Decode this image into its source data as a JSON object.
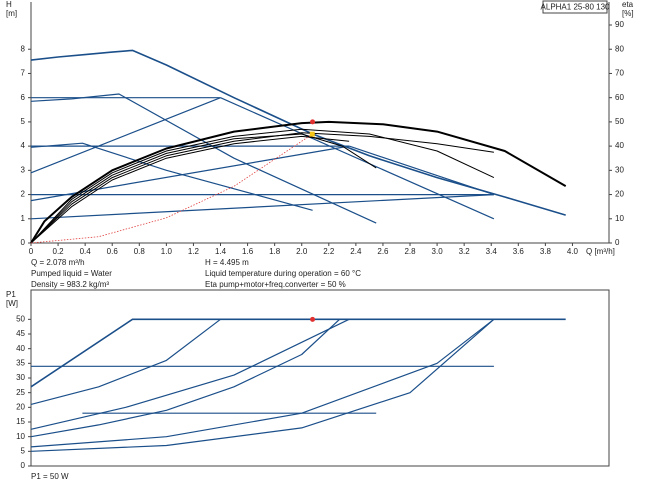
{
  "chart_data": [
    {
      "type": "line",
      "title": "ALPHA1 25-80 130",
      "ylabel": "H",
      "yunit": "[m]",
      "y2label": "eta",
      "y2unit": "[%]",
      "xlabel": "Q [m³/h]",
      "xlim": [
        0,
        4.27
      ],
      "ylim": [
        0,
        9.95
      ],
      "y2lim": [
        0,
        99.5
      ],
      "xticks": [
        0,
        0.2,
        0.4,
        0.6,
        0.8,
        {
          "value": 1,
          "label": "1.0"
        },
        1.2,
        1.4,
        1.6,
        1.8,
        {
          "value": 2,
          "label": "2.0"
        },
        2.2,
        2.4,
        2.6,
        2.8,
        {
          "value": 3,
          "label": "3.0"
        },
        3.2,
        3.4,
        3.6,
        3.8,
        {
          "value": 4,
          "label": "4.0"
        }
      ],
      "yticks": [
        0,
        1,
        2,
        3,
        4,
        5,
        6,
        7,
        8
      ],
      "y2ticks": [
        0,
        10,
        20,
        30,
        40,
        50,
        60,
        70,
        80,
        90
      ],
      "annotations": [
        "Q = 2.078 m³/h",
        "H = 4.495 m",
        "Pumped liquid = Water",
        "Liquid temperature during operation = 60 °C",
        "Density = 983.2 kg/m³",
        "Eta pump+motor+freq.converter = 50 %"
      ],
      "series": [
        {
          "color": "#1b4f8a",
          "width": 1.6,
          "x": [
            0,
            0.2,
            0.4,
            0.6,
            0.75,
            1.0,
            1.5,
            2.08,
            2.5,
            3.0,
            3.5,
            3.95
          ],
          "values": [
            7.55,
            7.68,
            7.78,
            7.88,
            7.95,
            7.35,
            6.0,
            4.5,
            3.6,
            2.7,
            1.9,
            1.15
          ]
        },
        {
          "color": "#1b4f8a",
          "width": 1.2,
          "x": [
            0,
            1.4
          ],
          "values": [
            6,
            6
          ]
        },
        {
          "color": "#1b4f8a",
          "width": 1.2,
          "x": [
            0,
            2.35
          ],
          "values": [
            4,
            4
          ]
        },
        {
          "color": "#1b4f8a",
          "width": 1.2,
          "x": [
            0,
            3.42
          ],
          "values": [
            2,
            2
          ]
        },
        {
          "color": "#1b4f8a",
          "width": 1.2,
          "x": [
            0,
            3.42
          ],
          "values": [
            1,
            2
          ]
        },
        {
          "color": "#1b4f8a",
          "width": 1.2,
          "x": [
            0,
            2.35
          ],
          "values": [
            1.75,
            4
          ]
        },
        {
          "color": "#1b4f8a",
          "width": 1.2,
          "x": [
            0,
            1.4
          ],
          "values": [
            2.9,
            6
          ]
        },
        {
          "color": "#1b4f8a",
          "width": 1.2,
          "x": [
            0,
            0.3,
            0.65,
            1.5,
            2.55
          ],
          "values": [
            5.85,
            5.95,
            6.15,
            3.5,
            0.82
          ]
        },
        {
          "color": "#1b4f8a",
          "width": 1.2,
          "x": [
            0,
            0.38,
            1.0,
            2.08
          ],
          "values": [
            3.95,
            4.12,
            3.0,
            1.35
          ]
        },
        {
          "color": "#1b4f8a",
          "width": 1.2,
          "x": [
            1.4,
            3.42
          ],
          "values": [
            6,
            1
          ]
        },
        {
          "color": "#1b4f8a",
          "width": 1.2,
          "x": [
            2.35,
            3.42
          ],
          "values": [
            4,
            2
          ]
        },
        {
          "color": "#000000",
          "width": 2,
          "axis": "y2",
          "x": [
            0,
            0.1,
            0.3,
            0.6,
            1.0,
            1.5,
            2.0,
            2.2,
            2.6,
            3.0,
            3.5,
            3.95
          ],
          "values": [
            0,
            9,
            19,
            30,
            39,
            46,
            49.5,
            50,
            49,
            46,
            38,
            23.5
          ]
        },
        {
          "color": "#000000",
          "width": 1,
          "axis": "y2",
          "x": [
            0,
            0.3,
            0.6,
            1.0,
            1.5,
            2.0,
            2.3,
            2.55
          ],
          "values": [
            0,
            17,
            28,
            37,
            43,
            45,
            40,
            31
          ]
        },
        {
          "color": "#000000",
          "width": 1,
          "axis": "y2",
          "x": [
            0,
            0.3,
            0.6,
            1.0,
            1.5,
            2.0,
            2.5,
            3.0,
            3.42
          ],
          "values": [
            0,
            18,
            29,
            38,
            44,
            47,
            45,
            38,
            27
          ]
        },
        {
          "color": "#000000",
          "width": 1,
          "axis": "y2",
          "x": [
            0,
            0.3,
            0.6,
            1.0,
            1.5,
            2.0,
            2.5,
            3.0,
            3.42
          ],
          "values": [
            0,
            16,
            27,
            36,
            42,
            45.5,
            44,
            41,
            37.5
          ]
        },
        {
          "color": "#000000",
          "width": 1,
          "axis": "y2",
          "x": [
            0,
            0.3,
            0.6,
            1.0,
            1.5,
            2.0,
            2.35
          ],
          "values": [
            0,
            15,
            26,
            35,
            41,
            44,
            42
          ]
        },
        {
          "color": "#e04040",
          "width": 0.8,
          "dash": true,
          "x": [
            0,
            0.5,
            1.0,
            1.5,
            2.08
          ],
          "values": [
            0,
            0.26,
            1.04,
            2.34,
            4.5
          ]
        },
        {
          "color": "#e03030",
          "marker": true,
          "axis": "y2",
          "x": [
            2.08
          ],
          "values": [
            50
          ]
        },
        {
          "color": "#f5c518",
          "marker": true,
          "x": [
            2.078
          ],
          "values": [
            4.495
          ]
        }
      ]
    },
    {
      "type": "line",
      "ylabel": "P1",
      "yunit": "[W]",
      "xlim": [
        0,
        4.27
      ],
      "ylim": [
        0,
        60
      ],
      "yticks": [
        0,
        5,
        10,
        15,
        20,
        25,
        30,
        35,
        40,
        45,
        50
      ],
      "annotations": [
        "P1 = 50 W"
      ],
      "series": [
        {
          "color": "#1b4f8a",
          "width": 1.6,
          "x": [
            0,
            0.75,
            3.95
          ],
          "values": [
            27,
            50,
            50
          ]
        },
        {
          "color": "#1b4f8a",
          "width": 1.2,
          "x": [
            0,
            3.42
          ],
          "values": [
            34,
            34
          ]
        },
        {
          "color": "#1b4f8a",
          "width": 1.2,
          "x": [
            0.38,
            2.55
          ],
          "values": [
            18,
            18
          ]
        },
        {
          "color": "#1b4f8a",
          "width": 1.2,
          "x": [
            0,
            0.5,
            1.0,
            1.4
          ],
          "values": [
            21,
            27,
            36,
            50
          ]
        },
        {
          "color": "#1b4f8a",
          "width": 1.2,
          "x": [
            0,
            0.7,
            1.5,
            2.35
          ],
          "values": [
            12.5,
            20,
            31,
            50
          ]
        },
        {
          "color": "#1b4f8a",
          "width": 1.2,
          "x": [
            0,
            0.5,
            1.0,
            1.5,
            2.0,
            2.28
          ],
          "values": [
            10,
            14,
            19,
            27,
            38,
            50
          ]
        },
        {
          "color": "#1b4f8a",
          "width": 1.2,
          "x": [
            0,
            1.0,
            2.0,
            3.0,
            3.42
          ],
          "values": [
            6.5,
            10,
            18,
            35,
            50
          ]
        },
        {
          "color": "#1b4f8a",
          "width": 1.2,
          "x": [
            0,
            1.0,
            2.0,
            2.8,
            3.42
          ],
          "values": [
            5,
            7,
            13,
            25,
            50
          ]
        },
        {
          "color": "#e03030",
          "marker": true,
          "x": [
            2.08
          ],
          "values": [
            50
          ]
        }
      ]
    }
  ]
}
